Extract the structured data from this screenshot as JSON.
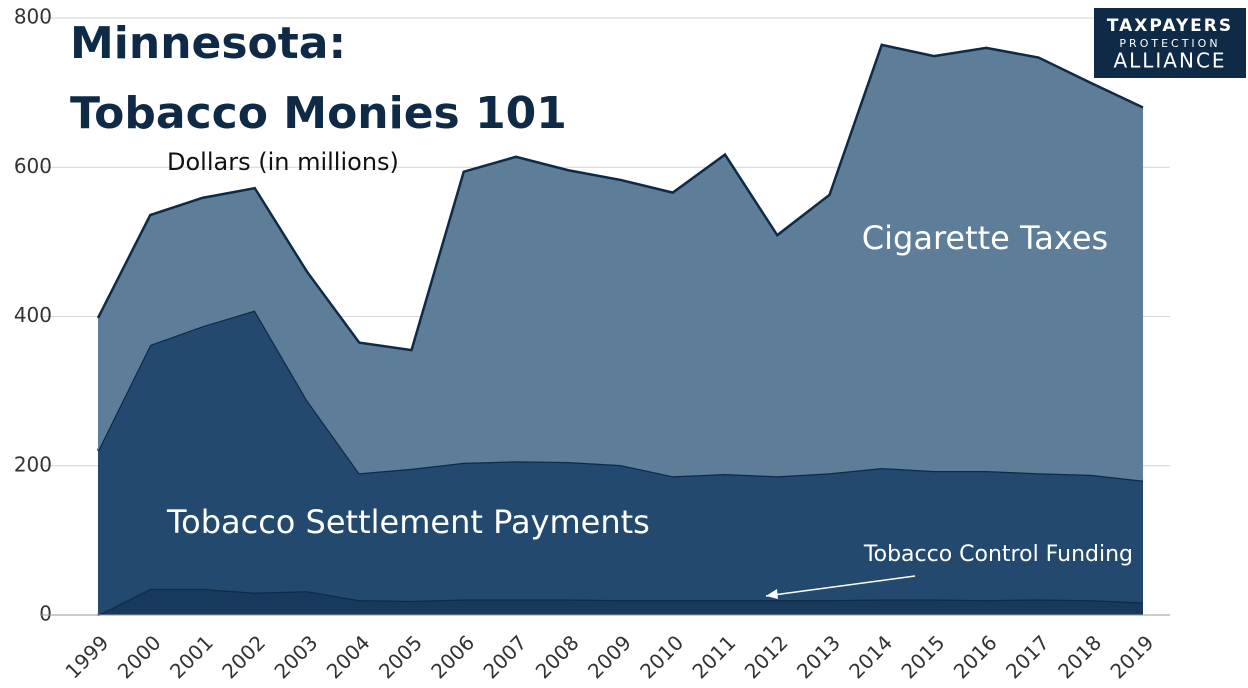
{
  "chart_data": {
    "type": "stacked_area",
    "title": [
      "Minnesota:",
      "Tobacco Monies 101"
    ],
    "y_label": "Dollars (in millions)",
    "logo": [
      "TAXPAYERS",
      "PROTECTION",
      "ALLIANCE"
    ],
    "categories": [
      "1999",
      "2000",
      "2001",
      "2002",
      "2003",
      "2004",
      "2005",
      "2006",
      "2007",
      "2008",
      "2009",
      "2010",
      "2011",
      "2012",
      "2013",
      "2014",
      "2015",
      "2016",
      "2017",
      "2018",
      "2019"
    ],
    "series": [
      {
        "name": "Tobacco Control Funding",
        "color": "#173a5c",
        "values": [
          0,
          35,
          35,
          30,
          32,
          20,
          19,
          21,
          21,
          21,
          20,
          20,
          20,
          20,
          20,
          21,
          21,
          20,
          21,
          20,
          17
        ]
      },
      {
        "name": "Tobacco Settlement Payments",
        "color": "#234a6e",
        "values": [
          220,
          327,
          352,
          378,
          256,
          170,
          177,
          183,
          185,
          184,
          181,
          166,
          169,
          166,
          170,
          176,
          172,
          173,
          169,
          168,
          163
        ]
      },
      {
        "name": "Cigarette Taxes",
        "color": "#5e7d98",
        "values": [
          178,
          174,
          172,
          164,
          172,
          175,
          159,
          390,
          408,
          391,
          382,
          380,
          428,
          323,
          373,
          567,
          556,
          567,
          557,
          525,
          500
        ]
      }
    ],
    "ylim": [
      0,
      800
    ],
    "yticks": [
      0,
      200,
      400,
      600,
      800
    ],
    "grid": true
  }
}
